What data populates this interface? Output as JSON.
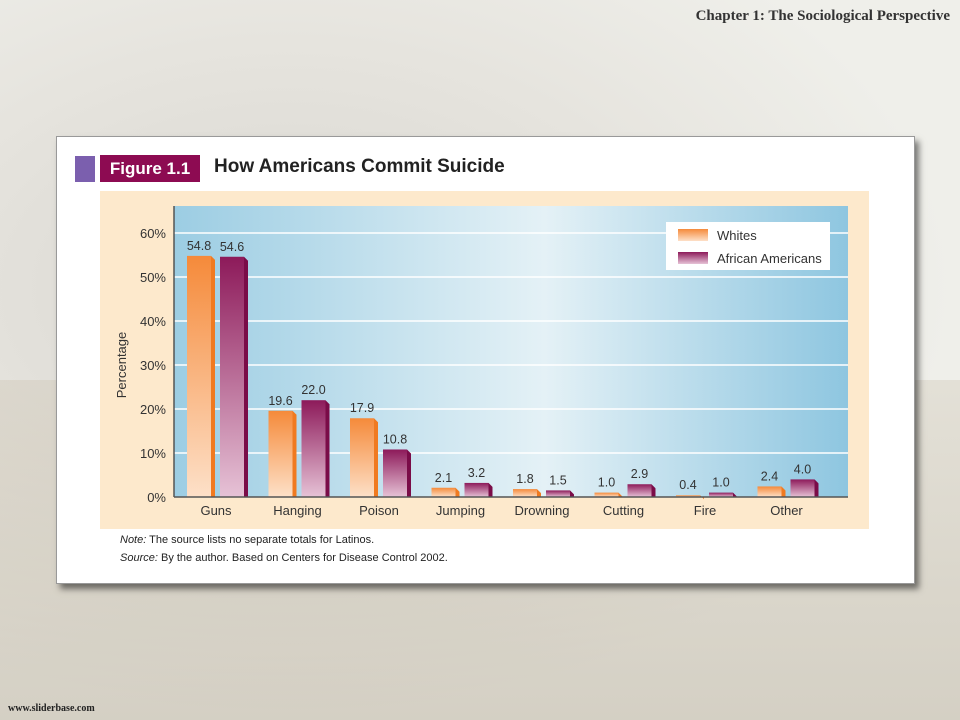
{
  "header": {
    "chapter": "Chapter  1: The Sociological Perspective"
  },
  "footer": {
    "site": "www.sliderbase.com"
  },
  "figure": {
    "label": "Figure 1.1",
    "note_label": "Note:",
    "note": " The source lists no separate totals for Latinos.",
    "source_label": "Source:",
    "source": " By the author. Based on Centers for Disease Control 2002."
  },
  "chart_data": {
    "type": "bar",
    "title": "How Americans Commit Suicide",
    "ylabel": "Percentage",
    "xlabel": "",
    "ylim": [
      0,
      60
    ],
    "yticks": [
      "0%",
      "10%",
      "20%",
      "30%",
      "40%",
      "50%",
      "60%"
    ],
    "categories": [
      "Guns",
      "Hanging",
      "Poison",
      "Jumping",
      "Drowning",
      "Cutting",
      "Fire",
      "Other"
    ],
    "series": [
      {
        "name": "Whites",
        "color": "#f58a3a",
        "values": [
          54.8,
          19.6,
          17.9,
          2.1,
          1.8,
          1.0,
          0.4,
          2.4
        ],
        "labels": [
          "54.8",
          "19.6",
          "17.9",
          "2.1",
          "1.8",
          "1.0",
          "0.4",
          "2.4"
        ]
      },
      {
        "name": "African Americans",
        "color": "#8d1a5a",
        "values": [
          54.6,
          22.0,
          10.8,
          3.2,
          1.5,
          2.9,
          1.0,
          4.0
        ],
        "labels": [
          "54.6",
          "22.0",
          "10.8",
          "3.2",
          "1.5",
          "2.9",
          "1.0",
          "4.0"
        ]
      }
    ],
    "legend": "top-right",
    "grid": true
  }
}
